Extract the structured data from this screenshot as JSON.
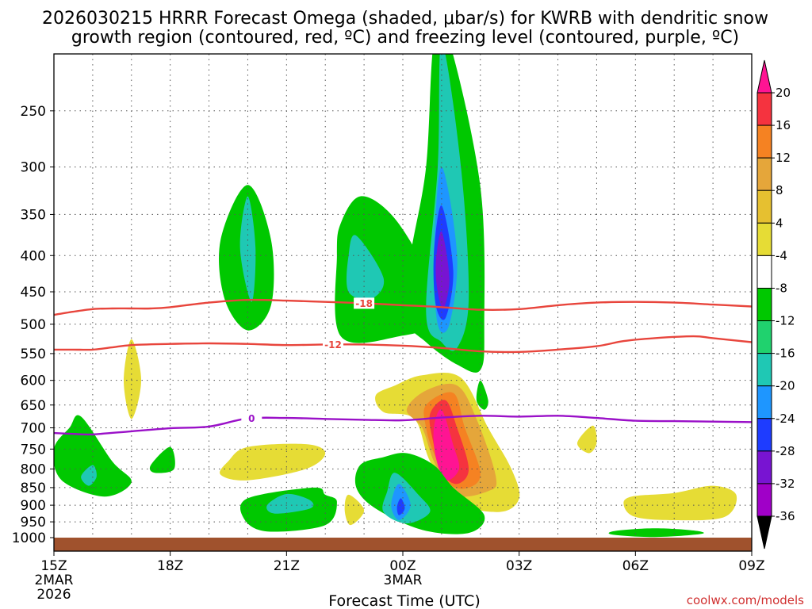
{
  "chart_data": {
    "type": "heatmap",
    "title_line1": "2026030215 HRRR Forecast Omega (shaded, μbar/s) for KWRB with dendritic snow",
    "title_line2": "growth region (contoured, red, ºC) and freezing level (contoured, purple, ºC)",
    "xlabel": "Forecast Time (UTC)",
    "credit": "coolwx.com/models",
    "x_hours": [
      15,
      18,
      21,
      24,
      27,
      30,
      33
    ],
    "x_tick_labels": [
      "15Z",
      "18Z",
      "21Z",
      "00Z",
      "03Z",
      "06Z",
      "09Z"
    ],
    "x_date_labels": [
      {
        "hour": 15,
        "line1": "2MAR",
        "line2": "2026"
      },
      {
        "hour": 24,
        "line1": "3MAR",
        "line2": ""
      }
    ],
    "xlim": [
      15,
      33
    ],
    "ylim_hpa": [
      1000,
      200
    ],
    "y_ticks_hpa": [
      250,
      300,
      350,
      400,
      450,
      500,
      550,
      600,
      650,
      700,
      750,
      800,
      850,
      900,
      950,
      1000
    ],
    "y_tick_labels": [
      "250",
      "300",
      "350",
      "400",
      "450",
      "500",
      "550",
      "600",
      "650",
      "700",
      "750",
      "800",
      "850",
      "900",
      "950",
      "1000"
    ],
    "colorbar": {
      "tick_labels": [
        "20",
        "16",
        "12",
        "8",
        "4",
        "-4",
        "-8",
        "-12",
        "-16",
        "-20",
        "-24",
        "-28",
        "-32",
        "-36"
      ],
      "colors": [
        "#ff1493",
        "#f5333f",
        "#f58222",
        "#e5a63a",
        "#e6c030",
        "#e6dc35",
        "#ffffff",
        "#00c800",
        "#20d26e",
        "#1fc8b4",
        "#1e96ff",
        "#1e3cff",
        "#7814d2",
        "#a000c8",
        "#aaaaaa",
        "#000000"
      ]
    },
    "contours": [
      {
        "name": "dgz-minus18",
        "label": "-18",
        "color": "#e8453c",
        "label_hour": 23.0,
        "points": [
          [
            15.0,
            485
          ],
          [
            15.5,
            480
          ],
          [
            16.0,
            476
          ],
          [
            16.5,
            475
          ],
          [
            17.0,
            475
          ],
          [
            17.5,
            475
          ],
          [
            18.0,
            473
          ],
          [
            19.0,
            466
          ],
          [
            20.0,
            462
          ],
          [
            21.0,
            463
          ],
          [
            22.0,
            465
          ],
          [
            23.0,
            467
          ],
          [
            24.0,
            470
          ],
          [
            25.0,
            473
          ],
          [
            26.0,
            477
          ],
          [
            27.0,
            476
          ],
          [
            28.0,
            470
          ],
          [
            29.0,
            466
          ],
          [
            30.0,
            465
          ],
          [
            31.0,
            466
          ],
          [
            32.0,
            469
          ],
          [
            33.0,
            472
          ]
        ]
      },
      {
        "name": "dgz-minus12",
        "label": "-12",
        "color": "#e8453c",
        "label_hour": 22.2,
        "points": [
          [
            15.0,
            543
          ],
          [
            15.5,
            543
          ],
          [
            16.0,
            543
          ],
          [
            16.5,
            539
          ],
          [
            17.0,
            535
          ],
          [
            18.0,
            533
          ],
          [
            19.0,
            532
          ],
          [
            20.0,
            533
          ],
          [
            21.0,
            535
          ],
          [
            22.0,
            534
          ],
          [
            23.0,
            534
          ],
          [
            24.0,
            536
          ],
          [
            25.0,
            540
          ],
          [
            26.0,
            546
          ],
          [
            27.0,
            547
          ],
          [
            28.0,
            543
          ],
          [
            29.0,
            537
          ],
          [
            29.7,
            528
          ],
          [
            30.5,
            523
          ],
          [
            31.5,
            520
          ],
          [
            32.0,
            523
          ],
          [
            33.0,
            530
          ]
        ]
      },
      {
        "name": "freezing-level",
        "label": "0",
        "color": "#9a10c8",
        "label_hour": 20.1,
        "points": [
          [
            15.0,
            712
          ],
          [
            15.5,
            714
          ],
          [
            16.0,
            715
          ],
          [
            17.0,
            708
          ],
          [
            18.0,
            701
          ],
          [
            19.0,
            697
          ],
          [
            20.0,
            679
          ],
          [
            21.0,
            678
          ],
          [
            22.0,
            680
          ],
          [
            23.0,
            682
          ],
          [
            24.0,
            683
          ],
          [
            25.0,
            677
          ],
          [
            26.0,
            673
          ],
          [
            27.0,
            675
          ],
          [
            28.0,
            673
          ],
          [
            29.0,
            678
          ],
          [
            30.0,
            684
          ],
          [
            31.0,
            685
          ],
          [
            32.0,
            686
          ],
          [
            33.0,
            687
          ]
        ]
      }
    ],
    "omega_regions": [
      {
        "color": "#00c800",
        "points": [
          [
            15.7,
            675
          ],
          [
            16.5,
            780
          ],
          [
            17.0,
            835
          ],
          [
            16.3,
            875
          ],
          [
            15.2,
            830
          ],
          [
            15.0,
            750
          ],
          [
            15.4,
            700
          ]
        ]
      },
      {
        "color": "#1fc8b4",
        "points": [
          [
            16.0,
            790
          ],
          [
            16.1,
            820
          ],
          [
            15.9,
            845
          ],
          [
            15.7,
            820
          ]
        ]
      },
      {
        "color": "#e6dc35",
        "points": [
          [
            17.0,
            525
          ],
          [
            17.25,
            600
          ],
          [
            17.0,
            680
          ],
          [
            16.8,
            600
          ]
        ]
      },
      {
        "color": "#00c800",
        "points": [
          [
            18.0,
            745
          ],
          [
            18.1,
            800
          ],
          [
            17.6,
            810
          ],
          [
            17.5,
            790
          ]
        ]
      },
      {
        "color": "#00c800",
        "points": [
          [
            20.0,
            318
          ],
          [
            20.6,
            380
          ],
          [
            20.6,
            470
          ],
          [
            20.0,
            510
          ],
          [
            19.4,
            460
          ],
          [
            19.3,
            380
          ]
        ]
      },
      {
        "color": "#1fc8b4",
        "points": [
          [
            20.0,
            330
          ],
          [
            20.2,
            390
          ],
          [
            20.1,
            465
          ],
          [
            19.8,
            390
          ]
        ]
      },
      {
        "color": "#e6dc35",
        "points": [
          [
            20.0,
            745
          ],
          [
            21.5,
            738
          ],
          [
            22.0,
            760
          ],
          [
            21.5,
            800
          ],
          [
            20.0,
            830
          ],
          [
            19.3,
            815
          ],
          [
            19.5,
            780
          ]
        ]
      },
      {
        "color": "#00c800",
        "points": [
          [
            21.7,
            850
          ],
          [
            22.0,
            870
          ],
          [
            22.3,
            890
          ],
          [
            22.0,
            960
          ],
          [
            20.5,
            980
          ],
          [
            19.9,
            940
          ],
          [
            20.0,
            880
          ]
        ]
      },
      {
        "color": "#1fc8b4",
        "points": [
          [
            21.0,
            868
          ],
          [
            21.6,
            885
          ],
          [
            21.6,
            910
          ],
          [
            20.7,
            925
          ],
          [
            20.5,
            900
          ]
        ]
      },
      {
        "color": "#e6dc35",
        "points": [
          [
            22.6,
            870
          ],
          [
            23.0,
            915
          ],
          [
            22.65,
            960
          ],
          [
            22.5,
            915
          ]
        ]
      },
      {
        "color": "#00c800",
        "points": [
          [
            22.9,
            330
          ],
          [
            23.7,
            350
          ],
          [
            24.5,
            410
          ],
          [
            25.0,
            490
          ],
          [
            23.9,
            520
          ],
          [
            22.4,
            520
          ],
          [
            22.3,
            400
          ],
          [
            22.4,
            360
          ]
        ]
      },
      {
        "color": "#1fc8b4",
        "points": [
          [
            22.8,
            375
          ],
          [
            23.5,
            430
          ],
          [
            23.2,
            460
          ],
          [
            22.6,
            450
          ],
          [
            22.6,
            400
          ]
        ]
      },
      {
        "color": "#00c800",
        "points": [
          [
            25.2,
            200
          ],
          [
            26.0,
            320
          ],
          [
            26.1,
            500
          ],
          [
            26.0,
            580
          ],
          [
            25.4,
            570
          ],
          [
            24.6,
            530
          ],
          [
            24.1,
            490
          ],
          [
            24.2,
            400
          ],
          [
            24.6,
            300
          ],
          [
            24.8,
            200
          ]
        ]
      },
      {
        "color": "#1fc8b4",
        "points": [
          [
            25.0,
            200
          ],
          [
            25.5,
            300
          ],
          [
            25.7,
            460
          ],
          [
            25.4,
            540
          ],
          [
            25.0,
            530
          ],
          [
            24.6,
            480
          ],
          [
            24.9,
            300
          ]
        ]
      },
      {
        "color": "#1e96ff",
        "points": [
          [
            25.0,
            300
          ],
          [
            25.4,
            400
          ],
          [
            25.2,
            500
          ],
          [
            24.9,
            500
          ],
          [
            24.8,
            400
          ]
        ]
      },
      {
        "color": "#1e3cff",
        "points": [
          [
            25.0,
            340
          ],
          [
            25.3,
            420
          ],
          [
            25.1,
            490
          ],
          [
            24.85,
            470
          ],
          [
            24.8,
            400
          ]
        ]
      },
      {
        "color": "#7814d2",
        "points": [
          [
            25.0,
            370
          ],
          [
            25.2,
            430
          ],
          [
            25.05,
            475
          ],
          [
            24.9,
            450
          ],
          [
            24.85,
            410
          ]
        ]
      },
      {
        "color": "#00c800",
        "points": [
          [
            26.0,
            600
          ],
          [
            26.2,
            640
          ],
          [
            26.1,
            660
          ],
          [
            25.9,
            640
          ]
        ]
      },
      {
        "color": "#e6dc35",
        "points": [
          [
            23.8,
            610
          ],
          [
            24.5,
            590
          ],
          [
            25.5,
            595
          ],
          [
            26.2,
            700
          ],
          [
            26.8,
            800
          ],
          [
            27.0,
            880
          ],
          [
            26.5,
            920
          ],
          [
            25.4,
            890
          ],
          [
            24.7,
            780
          ],
          [
            24.3,
            680
          ],
          [
            23.5,
            665
          ],
          [
            23.3,
            630
          ]
        ]
      },
      {
        "color": "#e5a63a",
        "points": [
          [
            25.4,
            610
          ],
          [
            25.9,
            680
          ],
          [
            26.4,
            820
          ],
          [
            26.2,
            860
          ],
          [
            25.3,
            870
          ],
          [
            24.8,
            780
          ],
          [
            24.5,
            700
          ],
          [
            24.1,
            660
          ],
          [
            24.6,
            620
          ]
        ]
      },
      {
        "color": "#f58222",
        "points": [
          [
            25.3,
            625
          ],
          [
            25.6,
            700
          ],
          [
            26.0,
            810
          ],
          [
            25.7,
            850
          ],
          [
            25.2,
            840
          ],
          [
            24.8,
            760
          ],
          [
            24.6,
            700
          ],
          [
            24.6,
            650
          ]
        ]
      },
      {
        "color": "#f5333f",
        "points": [
          [
            25.1,
            640
          ],
          [
            25.4,
            700
          ],
          [
            25.7,
            800
          ],
          [
            25.4,
            840
          ],
          [
            25.0,
            810
          ],
          [
            24.8,
            740
          ],
          [
            24.7,
            670
          ]
        ]
      },
      {
        "color": "#ff1493",
        "points": [
          [
            25.0,
            660
          ],
          [
            25.3,
            740
          ],
          [
            25.45,
            800
          ],
          [
            25.1,
            830
          ],
          [
            24.85,
            770
          ],
          [
            24.8,
            700
          ]
        ]
      },
      {
        "color": "#e6dc35",
        "points": [
          [
            28.9,
            695
          ],
          [
            29.0,
            735
          ],
          [
            28.8,
            760
          ],
          [
            28.5,
            735
          ]
        ]
      },
      {
        "color": "#00c800",
        "points": [
          [
            24.1,
            760
          ],
          [
            24.8,
            790
          ],
          [
            25.3,
            850
          ],
          [
            26.1,
            930
          ],
          [
            25.7,
            985
          ],
          [
            24.5,
            975
          ],
          [
            23.3,
            910
          ],
          [
            22.8,
            850
          ],
          [
            22.9,
            790
          ],
          [
            23.5,
            770
          ]
        ]
      },
      {
        "color": "#1fc8b4",
        "points": [
          [
            23.8,
            810
          ],
          [
            24.4,
            870
          ],
          [
            24.7,
            920
          ],
          [
            24.1,
            955
          ],
          [
            23.5,
            920
          ],
          [
            23.6,
            860
          ]
        ]
      },
      {
        "color": "#1e96ff",
        "points": [
          [
            23.9,
            840
          ],
          [
            24.2,
            900
          ],
          [
            23.9,
            945
          ],
          [
            23.7,
            900
          ]
        ]
      },
      {
        "color": "#1e3cff",
        "points": [
          [
            23.95,
            880
          ],
          [
            24.05,
            910
          ],
          [
            23.9,
            930
          ],
          [
            23.85,
            905
          ]
        ]
      },
      {
        "color": "#e6dc35",
        "points": [
          [
            31.0,
            865
          ],
          [
            32.0,
            845
          ],
          [
            32.6,
            870
          ],
          [
            32.3,
            935
          ],
          [
            31.0,
            945
          ],
          [
            30.0,
            935
          ],
          [
            29.7,
            900
          ],
          [
            29.9,
            875
          ]
        ]
      },
      {
        "color": "#00c800",
        "points": [
          [
            29.5,
            978
          ],
          [
            30.5,
            970
          ],
          [
            31.5,
            977
          ],
          [
            31.7,
            988
          ],
          [
            30.5,
            998
          ],
          [
            29.4,
            990
          ]
        ]
      }
    ]
  }
}
